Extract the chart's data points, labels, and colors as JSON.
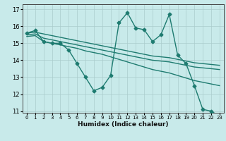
{
  "title": "",
  "xlabel": "Humidex (Indice chaleur)",
  "ylabel": "",
  "xlim": [
    -0.5,
    23.5
  ],
  "ylim": [
    10.9,
    17.3
  ],
  "yticks": [
    11,
    12,
    13,
    14,
    15,
    16,
    17
  ],
  "xticks": [
    0,
    1,
    2,
    3,
    4,
    5,
    6,
    7,
    8,
    9,
    10,
    11,
    12,
    13,
    14,
    15,
    16,
    17,
    18,
    19,
    20,
    21,
    22,
    23
  ],
  "bg_color": "#c8eaea",
  "grid_color": "#aacccc",
  "line_color": "#1e7b70",
  "series": [
    {
      "x": [
        0,
        1,
        2,
        3,
        4,
        5,
        6,
        7,
        8,
        9,
        10,
        11,
        12,
        13,
        14,
        15,
        16,
        17,
        18,
        19,
        20,
        21,
        22,
        23
      ],
      "y": [
        15.6,
        15.75,
        15.1,
        15.0,
        15.0,
        14.6,
        13.8,
        13.0,
        12.2,
        12.4,
        13.1,
        16.2,
        16.8,
        15.9,
        15.8,
        15.1,
        15.5,
        16.7,
        14.3,
        13.8,
        12.5,
        11.1,
        11.0,
        10.7
      ],
      "marker": "D",
      "markersize": 2.5,
      "linewidth": 1.0
    },
    {
      "x": [
        0,
        1,
        2,
        3,
        4,
        5,
        6,
        7,
        8,
        9,
        10,
        11,
        12,
        13,
        14,
        15,
        16,
        17,
        18,
        19,
        20,
        21,
        22,
        23
      ],
      "y": [
        15.6,
        15.65,
        15.55,
        15.45,
        15.35,
        15.25,
        15.15,
        15.05,
        14.95,
        14.85,
        14.75,
        14.65,
        14.55,
        14.45,
        14.35,
        14.25,
        14.2,
        14.15,
        14.05,
        13.95,
        13.85,
        13.8,
        13.75,
        13.7
      ],
      "marker": null,
      "markersize": 0,
      "linewidth": 1.0
    },
    {
      "x": [
        0,
        1,
        2,
        3,
        4,
        5,
        6,
        7,
        8,
        9,
        10,
        11,
        12,
        13,
        14,
        15,
        16,
        17,
        18,
        19,
        20,
        21,
        22,
        23
      ],
      "y": [
        15.5,
        15.55,
        15.3,
        15.2,
        15.1,
        15.0,
        14.9,
        14.8,
        14.7,
        14.6,
        14.5,
        14.4,
        14.3,
        14.2,
        14.1,
        14.0,
        13.95,
        13.9,
        13.8,
        13.7,
        13.6,
        13.55,
        13.5,
        13.45
      ],
      "marker": null,
      "markersize": 0,
      "linewidth": 1.0
    },
    {
      "x": [
        0,
        1,
        2,
        3,
        4,
        5,
        6,
        7,
        8,
        9,
        10,
        11,
        12,
        13,
        14,
        15,
        16,
        17,
        18,
        19,
        20,
        21,
        22,
        23
      ],
      "y": [
        15.4,
        15.45,
        15.1,
        15.0,
        14.9,
        14.8,
        14.7,
        14.55,
        14.45,
        14.35,
        14.2,
        14.05,
        13.9,
        13.75,
        13.6,
        13.45,
        13.35,
        13.25,
        13.1,
        12.95,
        12.8,
        12.7,
        12.6,
        12.5
      ],
      "marker": null,
      "markersize": 0,
      "linewidth": 1.0
    }
  ]
}
